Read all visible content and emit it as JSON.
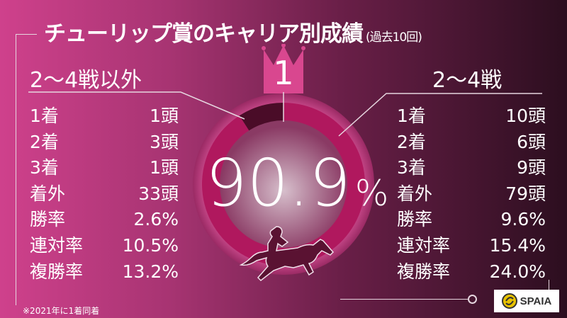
{
  "title": "チューリップ賞のキャリア別成績",
  "title_note": "(過去10回)",
  "rank": "1",
  "center_value": "90.9",
  "center_unit": "%",
  "left": {
    "heading": "2〜4戦以外",
    "rows": [
      {
        "label": "1着",
        "value": "1頭"
      },
      {
        "label": "2着",
        "value": "3頭"
      },
      {
        "label": "3着",
        "value": "1頭"
      },
      {
        "label": "着外",
        "value": "33頭"
      },
      {
        "label": "勝率",
        "value": "2.6%"
      },
      {
        "label": "連対率",
        "value": "10.5%"
      },
      {
        "label": "複勝率",
        "value": "13.2%"
      }
    ]
  },
  "right": {
    "heading": "2〜4戦",
    "rows": [
      {
        "label": "1着",
        "value": "10頭"
      },
      {
        "label": "2着",
        "value": "6頭"
      },
      {
        "label": "3着",
        "value": "9頭"
      },
      {
        "label": "着外",
        "value": "79頭"
      },
      {
        "label": "勝率",
        "value": "9.6%"
      },
      {
        "label": "連対率",
        "value": "15.4%"
      },
      {
        "label": "複勝率",
        "value": "24.0%"
      }
    ]
  },
  "footnote": "※2021年に1着同着",
  "logo": "SPAIA",
  "colors": {
    "accent": "#cf418c",
    "dark": "#2c0e1f",
    "ring_major": "#b0185e",
    "ring_minor": "#4a0c28"
  },
  "chart_data": {
    "type": "pie",
    "style": "donut",
    "categories": [
      "2〜4戦",
      "2〜4戦以外"
    ],
    "values": [
      90.9,
      9.1
    ],
    "unit": "%"
  }
}
